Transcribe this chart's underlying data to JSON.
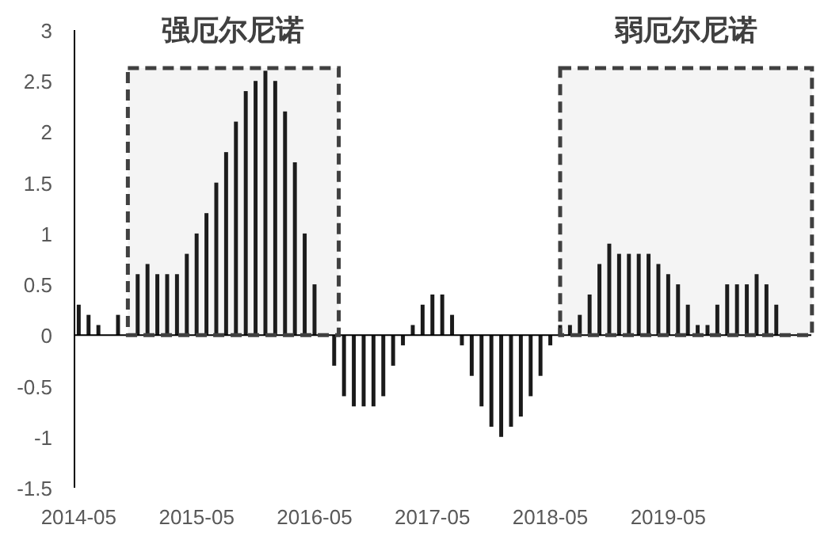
{
  "chart_data": {
    "type": "bar",
    "x": [
      "2014-05",
      "2014-06",
      "2014-07",
      "2014-08",
      "2014-09",
      "2014-10",
      "2014-11",
      "2014-12",
      "2015-01",
      "2015-02",
      "2015-03",
      "2015-04",
      "2015-05",
      "2015-06",
      "2015-07",
      "2015-08",
      "2015-09",
      "2015-10",
      "2015-11",
      "2015-12",
      "2016-01",
      "2016-02",
      "2016-03",
      "2016-04",
      "2016-05",
      "2016-06",
      "2016-07",
      "2016-08",
      "2016-09",
      "2016-10",
      "2016-11",
      "2016-12",
      "2017-01",
      "2017-02",
      "2017-03",
      "2017-04",
      "2017-05",
      "2017-06",
      "2017-07",
      "2017-08",
      "2017-09",
      "2017-10",
      "2017-11",
      "2017-12",
      "2018-01",
      "2018-02",
      "2018-03",
      "2018-04",
      "2018-05",
      "2018-06",
      "2018-07",
      "2018-08",
      "2018-09",
      "2018-10",
      "2018-11",
      "2018-12",
      "2019-01",
      "2019-02",
      "2019-03",
      "2019-04",
      "2019-05",
      "2019-06",
      "2019-07",
      "2019-08",
      "2019-09",
      "2019-10",
      "2019-11",
      "2019-12",
      "2020-01",
      "2020-02",
      "2020-03",
      "2020-04"
    ],
    "values": [
      0.3,
      0.2,
      0.1,
      0,
      0.2,
      null,
      0.6,
      0.7,
      0.6,
      0.6,
      0.6,
      0.8,
      1.0,
      1.2,
      1.5,
      1.8,
      2.1,
      2.4,
      2.5,
      2.6,
      2.5,
      2.2,
      1.7,
      1.0,
      0.5,
      0,
      -0.3,
      -0.6,
      -0.7,
      -0.7,
      -0.7,
      -0.6,
      -0.3,
      -0.1,
      0.1,
      0.3,
      0.4,
      0.4,
      0.2,
      -0.1,
      -0.4,
      -0.7,
      -0.9,
      -1.0,
      -0.9,
      -0.8,
      -0.6,
      -0.4,
      -0.1,
      0.1,
      0.1,
      0.2,
      0.4,
      0.7,
      0.9,
      0.8,
      0.8,
      0.8,
      0.8,
      0.7,
      0.6,
      0.5,
      0.3,
      0.1,
      0.1,
      0.3,
      0.5,
      0.5,
      0.5,
      0.6,
      0.5,
      0.3
    ],
    "color": "#1a1a1a",
    "xlim": [
      "2014-04-18",
      "2020-07-18"
    ],
    "xticks": [
      {
        "value": "2014-05",
        "label": "2014-05"
      },
      {
        "value": "2015-05",
        "label": "2015-05"
      },
      {
        "value": "2016-05",
        "label": "2016-05"
      },
      {
        "value": "2017-05",
        "label": "2017-05"
      },
      {
        "value": "2018-05",
        "label": "2018-05"
      },
      {
        "value": "2019-05",
        "label": "2019-05"
      }
    ],
    "ylim": [
      -1.5,
      3
    ],
    "yticks": [
      -1.5,
      -1,
      -0.5,
      0,
      0.5,
      1,
      1.5,
      2,
      2.5,
      3
    ],
    "bands": [
      {
        "axis": "x",
        "from": "2014-10",
        "to": "2016-07-15",
        "label": "强厄尔尼诺",
        "color": "#404040"
      },
      {
        "axis": "x",
        "from": "2018-06",
        "to": "2020-07-20",
        "label": "弱厄尔尼诺",
        "color": "#404040"
      }
    ]
  }
}
